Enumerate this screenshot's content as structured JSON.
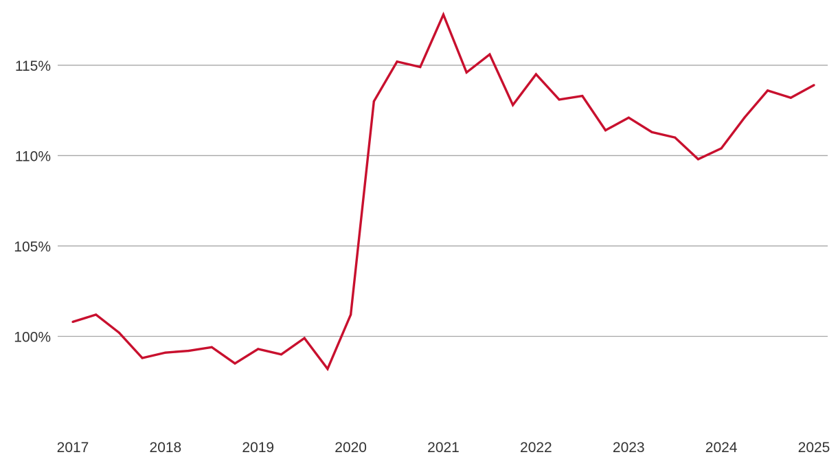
{
  "chart_data": {
    "type": "line",
    "title": "",
    "xlabel": "",
    "ylabel": "",
    "xlim": [
      2017,
      2025
    ],
    "ylim": [
      95,
      118
    ],
    "y_ticks": [
      100,
      105,
      110,
      115
    ],
    "y_tick_labels": [
      "100%",
      "105%",
      "110%",
      "115%"
    ],
    "x_ticks": [
      2017,
      2018,
      2019,
      2020,
      2021,
      2022,
      2023,
      2024,
      2025
    ],
    "x_tick_labels": [
      "2017",
      "2018",
      "2019",
      "2020",
      "2021",
      "2022",
      "2023",
      "2024",
      "2025"
    ],
    "grid": true,
    "legend": "none",
    "series": [
      {
        "color": "#c8102e",
        "x": [
          2017.0,
          2017.25,
          2017.5,
          2017.75,
          2018.0,
          2018.25,
          2018.5,
          2018.75,
          2019.0,
          2019.25,
          2019.5,
          2019.75,
          2020.0,
          2020.25,
          2020.5,
          2020.75,
          2021.0,
          2021.25,
          2021.5,
          2021.75,
          2022.0,
          2022.25,
          2022.5,
          2022.75,
          2023.0,
          2023.25,
          2023.5,
          2023.75,
          2024.0,
          2024.25,
          2024.5,
          2024.75,
          2025.0
        ],
        "values": [
          100.8,
          101.2,
          100.2,
          98.8,
          99.1,
          99.2,
          99.4,
          98.5,
          99.3,
          99.0,
          99.9,
          98.2,
          101.2,
          113.0,
          115.2,
          114.9,
          117.8,
          114.6,
          115.6,
          112.8,
          114.5,
          113.1,
          113.3,
          111.4,
          112.1,
          111.3,
          111.0,
          109.8,
          110.4,
          112.1,
          113.6,
          113.2,
          113.9
        ]
      }
    ]
  }
}
